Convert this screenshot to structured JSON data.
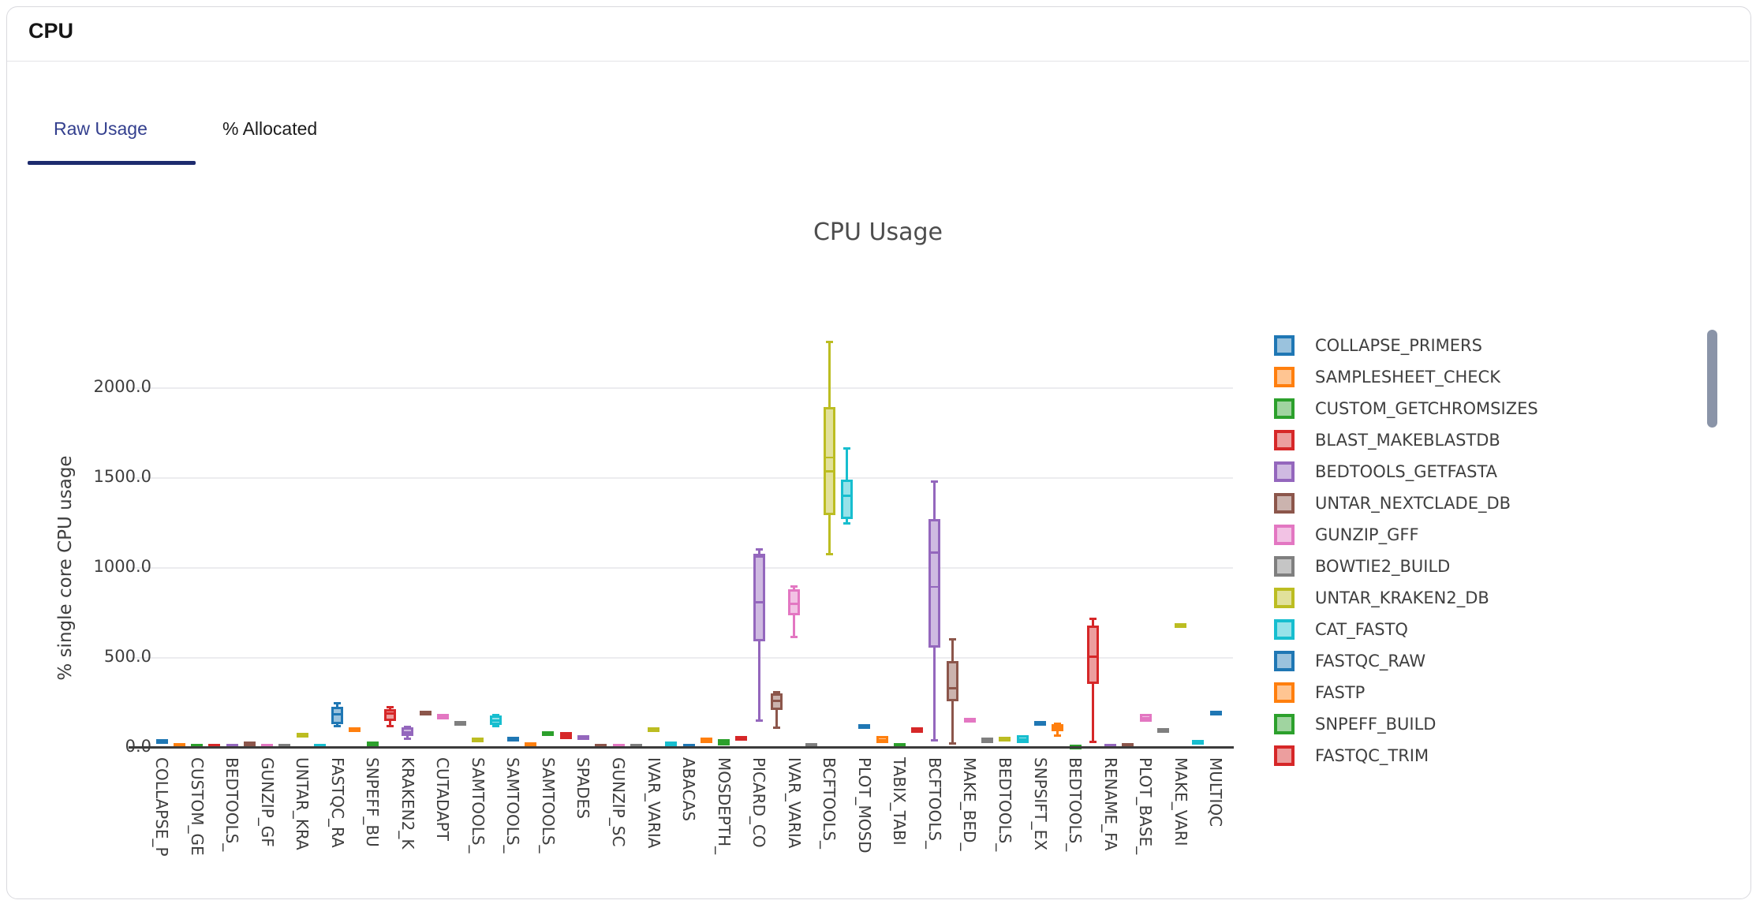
{
  "header": {
    "title": "CPU"
  },
  "tabs": [
    {
      "label": "Raw Usage",
      "active": true
    },
    {
      "label": "% Allocated",
      "active": false
    }
  ],
  "accent": {
    "active_tab_color": "#333f8e",
    "tab_underline_color": "#1d2b6e",
    "scrollbar_color": "#8a94a8"
  },
  "chart_data": {
    "type": "box",
    "title": "CPU Usage",
    "ylabel": "% single core CPU usage",
    "ylim": [
      0,
      2300
    ],
    "grid": "horizontal",
    "legend_position": "right",
    "y_ticks": [
      {
        "label": "0.0",
        "value": 0
      },
      {
        "label": "500.0",
        "value": 500
      },
      {
        "label": "1000.0",
        "value": 1000
      },
      {
        "label": "1500.0",
        "value": 1500
      },
      {
        "label": "2000.0",
        "value": 2000
      }
    ],
    "palette": {
      "borders": [
        "#1f77b4",
        "#ff7f0e",
        "#2ca02c",
        "#d62728",
        "#9467bd",
        "#8c564b",
        "#e377c2",
        "#7f7f7f",
        "#bcbd22",
        "#17becf"
      ],
      "fills": [
        "#9ac2dd",
        "#ffc592",
        "#a0d4a0",
        "#ec9e9e",
        "#cfbae1",
        "#cbb3ae",
        "#f2c2e4",
        "#c5c5c5",
        "#e1e19b",
        "#96e2e9"
      ]
    },
    "legend": [
      {
        "name": "COLLAPSE_PRIMERS",
        "color": 0
      },
      {
        "name": "SAMPLESHEET_CHECK",
        "color": 1
      },
      {
        "name": "CUSTOM_GETCHROMSIZES",
        "color": 2
      },
      {
        "name": "BLAST_MAKEBLASTDB",
        "color": 3
      },
      {
        "name": "BEDTOOLS_GETFASTA",
        "color": 4
      },
      {
        "name": "UNTAR_NEXTCLADE_DB",
        "color": 5
      },
      {
        "name": "GUNZIP_GFF",
        "color": 6
      },
      {
        "name": "BOWTIE2_BUILD",
        "color": 7
      },
      {
        "name": "UNTAR_KRAKEN2_DB",
        "color": 8
      },
      {
        "name": "CAT_FASTQ",
        "color": 9
      },
      {
        "name": "FASTQC_RAW",
        "color": 0
      },
      {
        "name": "FASTP",
        "color": 1
      },
      {
        "name": "SNPEFF_BUILD",
        "color": 2
      },
      {
        "name": "FASTQC_TRIM",
        "color": 3
      }
    ],
    "boxes": [
      {
        "tick": "COLLAPSE_P",
        "color": 0,
        "q1": 22,
        "q3": 40,
        "median": 31
      },
      {
        "color": 1,
        "q1": 5,
        "q3": 20,
        "median": 13
      },
      {
        "tick": "CUSTOM_GE",
        "color": 2,
        "q1": 0,
        "q3": 13,
        "median": 6
      },
      {
        "color": 3,
        "q1": 0,
        "q3": 9,
        "median": 5
      },
      {
        "tick": "BEDTOOLS_",
        "color": 4,
        "q1": 0,
        "q3": 9,
        "median": 5
      },
      {
        "color": 5,
        "q1": 13,
        "q3": 26,
        "median": 20
      },
      {
        "tick": "GUNZIP_GF",
        "color": 6,
        "q1": 0,
        "q3": 9,
        "median": 5
      },
      {
        "color": 7,
        "q1": 0,
        "q3": 13,
        "median": 7
      },
      {
        "tick": "UNTAR_KRA",
        "color": 8,
        "q1": 60,
        "q3": 80,
        "median": 70
      },
      {
        "color": 9,
        "q1": 0,
        "q3": 13,
        "median": 7
      },
      {
        "tick": "FASTQC_RA",
        "color": 0,
        "q1": 130,
        "q3": 228,
        "median": 183,
        "whisker_low": 118,
        "whisker_high": 246
      },
      {
        "color": 1,
        "q1": 88,
        "q3": 106,
        "median": 97
      },
      {
        "tick": "SNPEFF_BU",
        "color": 2,
        "q1": 13,
        "q3": 26,
        "median": 20
      },
      {
        "color": 3,
        "q1": 149,
        "q3": 215,
        "median": 190,
        "whisker_low": 119,
        "whisker_high": 222
      },
      {
        "tick": "KRAKEN2_K",
        "color": 4,
        "q1": 62,
        "q3": 110,
        "median": 85,
        "whisker_low": 48,
        "whisker_high": 114
      },
      {
        "color": 5,
        "q1": 183,
        "q3": 196,
        "median": 190
      },
      {
        "tick": "CUTADAPT",
        "color": 6,
        "q1": 155,
        "q3": 185,
        "median": 170
      },
      {
        "color": 7,
        "q1": 120,
        "q3": 145,
        "median": 132
      },
      {
        "tick": "SAMTOOLS_",
        "color": 8,
        "q1": 35,
        "q3": 52,
        "median": 44
      },
      {
        "color": 9,
        "q1": 127,
        "q3": 176,
        "median": 150,
        "whisker_low": 120,
        "whisker_high": 181
      },
      {
        "tick": "SAMTOOLS_",
        "color": 0,
        "q1": 35,
        "q3": 55,
        "median": 44
      },
      {
        "color": 1,
        "q1": 10,
        "q3": 25,
        "median": 18
      },
      {
        "tick": "SAMTOOLS_",
        "color": 2,
        "q1": 65,
        "q3": 85,
        "median": 75
      },
      {
        "color": 3,
        "q1": 44,
        "q3": 84,
        "median": 65
      },
      {
        "tick": "SPADES",
        "color": 4,
        "q1": 40,
        "q3": 66,
        "median": 53
      },
      {
        "color": 5,
        "q1": 0,
        "q3": 10,
        "median": 5
      },
      {
        "tick": "GUNZIP_SC",
        "color": 6,
        "q1": 0,
        "q3": 10,
        "median": 5
      },
      {
        "color": 7,
        "q1": 0,
        "q3": 10,
        "median": 5
      },
      {
        "tick": "IVAR_VARIA",
        "color": 8,
        "q1": 95,
        "q3": 107,
        "median": 101
      },
      {
        "color": 9,
        "q1": 0,
        "q3": 31,
        "median": 15
      },
      {
        "tick": "ABACAS",
        "color": 0,
        "q1": 0,
        "q3": 17,
        "median": 8
      },
      {
        "color": 1,
        "q1": 22,
        "q3": 53,
        "median": 38
      },
      {
        "tick": "MOSDEPTH_",
        "color": 2,
        "q1": 13,
        "q3": 44,
        "median": 28
      },
      {
        "color": 3,
        "q1": 40,
        "q3": 65,
        "median": 53
      },
      {
        "tick": "PICARD_CO",
        "color": 4,
        "q1": 593,
        "q3": 1077,
        "median": 810,
        "median2": 1060,
        "whisker_low": 149,
        "whisker_high": 1103
      },
      {
        "color": 5,
        "q1": 207,
        "q3": 299,
        "median": 260,
        "whisker_low": 110,
        "whisker_high": 308
      },
      {
        "tick": "IVAR_VARIA",
        "color": 6,
        "q1": 734,
        "q3": 883,
        "median": 800,
        "whisker_low": 615,
        "whisker_high": 896
      },
      {
        "color": 7,
        "q1": 0,
        "q3": 18,
        "median": 9
      },
      {
        "tick": "BCFTOOLS_",
        "color": 8,
        "q1": 1296,
        "q3": 1898,
        "median": 1538,
        "median2": 1613,
        "whisker_low": 1077,
        "whisker_high": 2259
      },
      {
        "color": 9,
        "q1": 1274,
        "q3": 1490,
        "median": 1400,
        "whisker_low": 1248,
        "whisker_high": 1665
      },
      {
        "tick": "PLOT_MOSD",
        "color": 0,
        "q1": 105,
        "q3": 127,
        "median": 116
      },
      {
        "color": 1,
        "q1": 22,
        "q3": 62,
        "median": 40
      },
      {
        "tick": "TABIX_TABI",
        "color": 2,
        "q1": 0,
        "q3": 26,
        "median": 13
      },
      {
        "color": 3,
        "q1": 83,
        "q3": 110,
        "median": 95
      },
      {
        "tick": "BCFTOOLS_",
        "color": 4,
        "q1": 558,
        "q3": 1274,
        "median": 1085,
        "median2": 896,
        "whisker_low": 40,
        "whisker_high": 1481
      },
      {
        "color": 5,
        "q1": 259,
        "q3": 479,
        "median": 330,
        "whisker_low": 22,
        "whisker_high": 602
      },
      {
        "tick": "MAKE_BED_",
        "color": 6,
        "q1": 140,
        "q3": 165,
        "median": 152
      },
      {
        "color": 7,
        "q1": 25,
        "q3": 55,
        "median": 45
      },
      {
        "tick": "BEDTOOLS_",
        "color": 8,
        "q1": 40,
        "q3": 55,
        "median": 48
      },
      {
        "color": 9,
        "q1": 22,
        "q3": 66,
        "median": 45
      },
      {
        "tick": "SNPSIFT_EX",
        "color": 0,
        "q1": 125,
        "q3": 140,
        "median": 133
      },
      {
        "color": 1,
        "q1": 88,
        "q3": 129,
        "median": 108,
        "whisker_low": 66,
        "whisker_high": 132
      },
      {
        "tick": "BEDTOOLS_",
        "color": 2,
        "q1": 0,
        "q3": 8,
        "median": 4
      },
      {
        "color": 3,
        "q1": 352,
        "q3": 677,
        "median": 505,
        "whisker_low": 31,
        "whisker_high": 716
      },
      {
        "tick": "RENAME_FA",
        "color": 4,
        "q1": 0,
        "q3": 9,
        "median": 5
      },
      {
        "color": 5,
        "q1": 5,
        "q3": 15,
        "median": 10
      },
      {
        "tick": "PLOT_BASE_",
        "color": 6,
        "q1": 141,
        "q3": 185,
        "median": 163
      },
      {
        "color": 7,
        "q1": 90,
        "q3": 100,
        "median": 95
      },
      {
        "tick": "MAKE_VARI",
        "color": 8,
        "q1": 672,
        "q3": 690,
        "median": 681
      },
      {
        "color": 9,
        "q1": 25,
        "q3": 35,
        "median": 30
      },
      {
        "tick": "MULTIQC",
        "color": 0,
        "q1": 185,
        "q3": 200,
        "median": 193
      }
    ]
  }
}
